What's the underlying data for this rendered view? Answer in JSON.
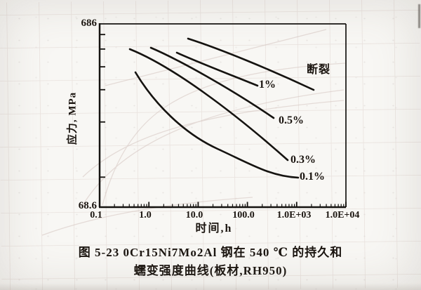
{
  "figure": {
    "y_axis": {
      "label": "应力, MPa",
      "top_value": "686",
      "bottom_value": "68.6"
    },
    "x_axis": {
      "label": "时间,h",
      "ticks": [
        "0.1",
        "1.0",
        "10.0",
        "100.0",
        "1.0E+03",
        "1.0E+04"
      ]
    },
    "curve_labels": {
      "rupture": "断裂",
      "strain_1": "1%",
      "strain_05": "0.5%",
      "strain_03": "0.3%",
      "strain_01": "0.1%"
    },
    "caption_line1": "图 5-23  0Cr15Ni7Mo2Al 钢在 540 ℃ 的持久和",
    "caption_line2": "蠕变强度曲线(板材,RH950)"
  },
  "chart_data": {
    "type": "line",
    "title": "图 5-23 0Cr15Ni7Mo2Al 钢在 540 ℃ 的持久和蠕变强度曲线(板材,RH950)",
    "xlabel": "时间,h",
    "ylabel": "应力, MPa",
    "x_scale": "log",
    "y_scale": "log",
    "xlim": [
      0.1,
      10000
    ],
    "ylim": [
      68.6,
      686
    ],
    "x_tick_labels": [
      "0.1",
      "1.0",
      "10.0",
      "100.0",
      "1.0E+03",
      "1.0E+04"
    ],
    "y_tick_labels": [
      "68.6",
      "686"
    ],
    "grid": false,
    "legend_position": "inline-labels",
    "ink_color": "#151310",
    "series": [
      {
        "name": "断裂",
        "x": [
          6.3,
          18,
          130,
          2300
        ],
        "y": [
          565,
          505,
          440,
          296
        ]
      },
      {
        "name": "1%",
        "x": [
          3.7,
          25,
          100,
          165
        ],
        "y": [
          473,
          366,
          332,
          311
        ]
      },
      {
        "name": "0.5%",
        "x": [
          1.1,
          18,
          130,
          350
        ],
        "y": [
          503,
          353,
          266,
          208
        ]
      },
      {
        "name": "0.3%",
        "x": [
          0.4,
          9.4,
          130,
          670
        ],
        "y": [
          494,
          326,
          191,
          122
        ]
      },
      {
        "name": "0.1%",
        "x": [
          0.53,
          9.4,
          130,
          1100
        ],
        "y": [
          369,
          190,
          115,
          98
        ]
      }
    ]
  }
}
